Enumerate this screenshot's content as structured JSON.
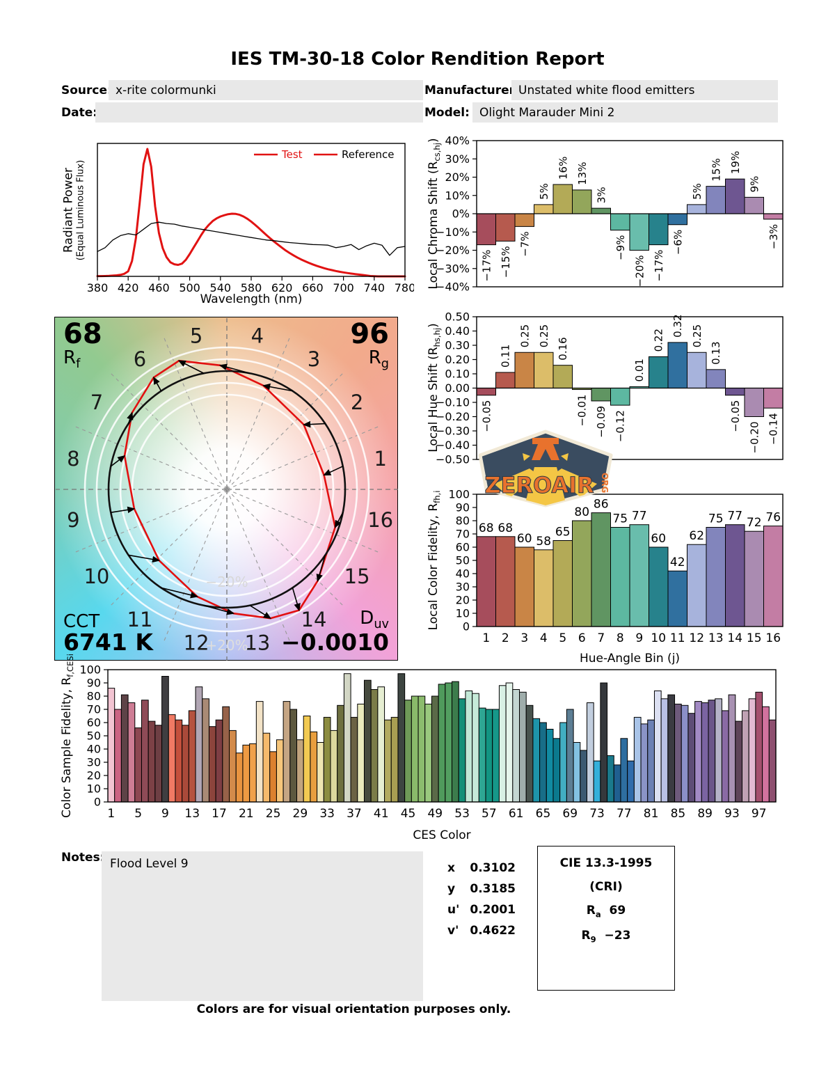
{
  "title": "IES TM-30-18 Color Rendition Report",
  "meta": {
    "source_label": "Source:",
    "source": "x-rite colormunki",
    "manufacturer_label": "Manufacturer:",
    "manufacturer": "Unstated white flood emitters",
    "date_label": "Date:",
    "date": "",
    "model_label": "Model:",
    "model": "Olight Marauder Mini 2"
  },
  "notes": {
    "label": "Notes:",
    "text": "Flood Level 9"
  },
  "chromaticity": {
    "rows": [
      {
        "k": "x",
        "v": "0.3102"
      },
      {
        "k": "y",
        "v": "0.3185"
      },
      {
        "k": "u'",
        "v": "0.2001"
      },
      {
        "k": "v'",
        "v": "0.4622"
      }
    ]
  },
  "cri": {
    "title": "CIE 13.3-1995",
    "subtitle": "(CRI)",
    "ra_pre": "R",
    "ra_sub": "a",
    "ra_val": "69",
    "r9_pre": "R",
    "r9_sub": "9",
    "r9_val": "−23"
  },
  "footer": "Colors are for visual orientation purposes only.",
  "logo": {
    "word": "ZEROAIR",
    "org": "ORG"
  },
  "hue_bin_colors": [
    "#a64d5c",
    "#b65a4e",
    "#c98546",
    "#dcbd69",
    "#b3aa57",
    "#93a65b",
    "#609562",
    "#5db8a1",
    "#69bdac",
    "#27828c",
    "#30709f",
    "#a7b3dc",
    "#8285bc",
    "#6e5691",
    "#aa8bb1",
    "#c37da4"
  ],
  "chart_data": [
    {
      "name": "spectral_power_distribution",
      "type": "line",
      "xlabel": "Wavelength (nm)",
      "ylabel1": "Radiant Power",
      "ylabel2": "(Equal Luminous Flux)",
      "xlim": [
        380,
        780
      ],
      "xtick_step": 40,
      "ylim": [
        0,
        1
      ],
      "grid": false,
      "legend_position": "upper right",
      "legend": [
        {
          "label": "Test",
          "color": "#e11212"
        },
        {
          "label": "Reference",
          "color": "#000000"
        }
      ],
      "series": [
        {
          "name": "Test",
          "color": "#e11212",
          "width": 3,
          "x_start": 380,
          "x_step": 5,
          "y": [
            0.002,
            0.002,
            0.003,
            0.004,
            0.006,
            0.008,
            0.012,
            0.02,
            0.04,
            0.12,
            0.3,
            0.58,
            0.88,
            1.0,
            0.86,
            0.55,
            0.34,
            0.22,
            0.15,
            0.11,
            0.095,
            0.09,
            0.1,
            0.13,
            0.175,
            0.225,
            0.275,
            0.325,
            0.37,
            0.405,
            0.435,
            0.455,
            0.47,
            0.48,
            0.488,
            0.492,
            0.49,
            0.483,
            0.47,
            0.452,
            0.43,
            0.405,
            0.378,
            0.35,
            0.323,
            0.297,
            0.272,
            0.248,
            0.225,
            0.203,
            0.183,
            0.165,
            0.148,
            0.133,
            0.119,
            0.106,
            0.094,
            0.083,
            0.073,
            0.064,
            0.056,
            0.049,
            0.042,
            0.036,
            0.031,
            0.026,
            0.022,
            0.018,
            0.014,
            0.011,
            0.007,
            0.003,
            0.001,
            0,
            0,
            0,
            0,
            0,
            0,
            0,
            0
          ]
        },
        {
          "name": "Reference",
          "color": "#000000",
          "width": 1.3,
          "x_start": 380,
          "x_step": 10,
          "y": [
            0.195,
            0.225,
            0.285,
            0.32,
            0.335,
            0.325,
            0.37,
            0.415,
            0.425,
            0.415,
            0.41,
            0.395,
            0.385,
            0.375,
            0.365,
            0.355,
            0.345,
            0.335,
            0.325,
            0.315,
            0.305,
            0.295,
            0.285,
            0.28,
            0.272,
            0.265,
            0.26,
            0.255,
            0.25,
            0.248,
            0.245,
            0.225,
            0.235,
            0.25,
            0.21,
            0.24,
            0.26,
            0.245,
            0.165,
            0.225,
            0.235
          ]
        }
      ]
    },
    {
      "name": "local_chroma_shift",
      "type": "bar",
      "ylabel_pre": "Local Chroma Shift (R",
      "ylabel_sub": "cs,hj",
      "ylabel_post": ")",
      "ylim": [
        -40,
        40
      ],
      "ytick_step": 10,
      "ytick_decimals": 0,
      "ytick_suffix": "%",
      "categories": [
        1,
        2,
        3,
        4,
        5,
        6,
        7,
        8,
        9,
        10,
        11,
        12,
        13,
        14,
        15,
        16
      ],
      "values": [
        -17,
        -15,
        -7,
        5,
        16,
        13,
        3,
        -9,
        -20,
        -17,
        -6,
        5,
        15,
        19,
        9,
        -3
      ],
      "bar_labels": [
        "−17%",
        "−15%",
        "−7%",
        "5%",
        "16%",
        "13%",
        "3%",
        "−9%",
        "−20%",
        "−17%",
        "−6%",
        "5%",
        "15%",
        "19%",
        "9%",
        "−3%"
      ]
    },
    {
      "name": "local_hue_shift",
      "type": "bar",
      "ylabel_pre": "Local Hue Shift (R",
      "ylabel_sub": "hs,hj",
      "ylabel_post": ")",
      "ylim": [
        -0.5,
        0.5
      ],
      "ytick_step": 0.1,
      "ytick_decimals": 2,
      "ytick_suffix": "",
      "categories": [
        1,
        2,
        3,
        4,
        5,
        6,
        7,
        8,
        9,
        10,
        11,
        12,
        13,
        14,
        15,
        16
      ],
      "values": [
        -0.05,
        0.11,
        0.25,
        0.25,
        0.16,
        -0.01,
        -0.09,
        -0.12,
        0.01,
        0.22,
        0.32,
        0.25,
        0.13,
        -0.05,
        -0.2,
        -0.14
      ],
      "bar_labels": [
        "−0.05",
        "0.11",
        "0.25",
        "0.25",
        "0.16",
        "−0.01",
        "−0.09",
        "−0.12",
        "0.01",
        "0.22",
        "0.32",
        "0.25",
        "0.13",
        "−0.05",
        "−0.20",
        "−0.14"
      ]
    },
    {
      "name": "local_color_fidelity",
      "type": "bar",
      "ylabel_pre": "Local Color Fidelity, R",
      "ylabel_sub": "fh,i",
      "ylabel_post": "",
      "xlabel": "Hue-Angle Bin (j)",
      "ylim": [
        0,
        100
      ],
      "ytick_step": 10,
      "ytick_decimals": 0,
      "ytick_suffix": "",
      "categories": [
        1,
        2,
        3,
        4,
        5,
        6,
        7,
        8,
        9,
        10,
        11,
        12,
        13,
        14,
        15,
        16
      ],
      "xticks": [
        1,
        2,
        3,
        4,
        5,
        6,
        7,
        8,
        9,
        10,
        11,
        12,
        13,
        14,
        15,
        16
      ],
      "values": [
        68,
        68,
        60,
        58,
        65,
        80,
        86,
        75,
        77,
        60,
        42,
        62,
        75,
        77,
        72,
        76
      ]
    },
    {
      "name": "color_sample_fidelity",
      "type": "bar",
      "ylabel_pre": "Color Sample Fidelity, R",
      "ylabel_sub": "f,CESi",
      "ylabel_post": "",
      "xlabel": "CES Color",
      "ylim": [
        0,
        100
      ],
      "ytick_step": 10,
      "ytick_decimals": 0,
      "ytick_suffix": "",
      "xticks": [
        1,
        5,
        9,
        13,
        17,
        21,
        25,
        29,
        33,
        37,
        41,
        45,
        49,
        53,
        57,
        61,
        65,
        69,
        73,
        77,
        81,
        85,
        89,
        93,
        97
      ],
      "values": [
        86,
        70,
        81,
        75,
        56,
        77,
        61,
        58,
        95,
        66,
        62,
        58,
        69,
        87,
        78,
        57,
        62,
        72,
        54,
        37,
        43,
        44,
        76,
        52,
        38,
        47,
        76,
        70,
        47,
        65,
        53,
        45,
        64,
        54,
        73,
        97,
        64,
        74,
        92,
        85,
        87,
        62,
        64,
        97,
        77,
        80,
        80,
        74,
        80,
        89,
        90,
        91,
        78,
        84,
        82,
        71,
        70,
        70,
        88,
        90,
        85,
        83,
        73,
        63,
        60,
        55,
        48,
        60,
        70,
        45,
        39,
        75,
        31,
        90,
        35,
        28,
        48,
        31,
        64,
        59,
        62,
        84,
        78,
        81,
        74,
        73,
        67,
        76,
        75,
        77,
        78,
        69,
        81,
        61,
        69,
        78,
        83,
        72,
        62
      ],
      "colors": [
        "#f2c4d2",
        "#cb6383",
        "#5e4347",
        "#ce7d95",
        "#8d4752",
        "#8f4b57",
        "#7c4146",
        "#6e3f44",
        "#3f3e41",
        "#f07a64",
        "#c4503c",
        "#aa4a3a",
        "#b5523f",
        "#b1a6b4",
        "#a98a75",
        "#8c443c",
        "#7e3e44",
        "#976249",
        "#d38b4b",
        "#e99440",
        "#ee9a43",
        "#f0a14b",
        "#f3e3c7",
        "#f6ba6c",
        "#dc8130",
        "#f7c67b",
        "#c5a584",
        "#5d593f",
        "#c1a47e",
        "#f2ca52",
        "#e89e3e",
        "#efe5b2",
        "#8c8c41",
        "#dcd89e",
        "#6e7040",
        "#d2d6c4",
        "#6b6244",
        "#e9e9bc",
        "#464a3e",
        "#7b7c48",
        "#e6eed2",
        "#b2aa60",
        "#a89e52",
        "#3d4541",
        "#6f9a58",
        "#8aba6a",
        "#8cbc6e",
        "#9ac87e",
        "#5a6a48",
        "#4f9a5c",
        "#529e60",
        "#3c7c4c",
        "#149078",
        "#c2e8d6",
        "#c6ead8",
        "#2ea693",
        "#129482",
        "#16988a",
        "#d8f0e4",
        "#e6f5ec",
        "#c4d6d2",
        "#9fadab",
        "#48534e",
        "#1e94aa",
        "#186e88",
        "#118ba2",
        "#0b7a8e",
        "#42aec2",
        "#5c7e94",
        "#83c2e2",
        "#3c5a72",
        "#c2cede",
        "#35b0da",
        "#35383c",
        "#1a7a8c",
        "#205f90",
        "#2e6ea0",
        "#2f6cac",
        "#a9c4e8",
        "#8a94c6",
        "#6c80b4",
        "#dce0f2",
        "#b9c0e4",
        "#3b3b42",
        "#6e5a7c",
        "#8b8fc8",
        "#5e4d76",
        "#a28ac4",
        "#7b64a2",
        "#6b5689",
        "#b5b3c8",
        "#8a6aa4",
        "#a891b2",
        "#5e4458",
        "#c0a2b4",
        "#e2bad2",
        "#a4506e",
        "#d2729e",
        "#8e5070"
      ]
    },
    {
      "name": "color_vector_graphic",
      "type": "cvg",
      "rf_value": "68",
      "rf_pre": "R",
      "rf_sub": "f",
      "rg_value": "96",
      "rg_pre": "R",
      "rg_sub": "g",
      "cct_label": "CCT",
      "cct_value": "6741 K",
      "duv_pre": "D",
      "duv_sub": "uv",
      "duv_value": "−0.0010",
      "ring_label_neg": "−20%",
      "ring_label_pos": "+20%",
      "bins": [
        1,
        2,
        3,
        4,
        5,
        6,
        7,
        8,
        9,
        10,
        11,
        12,
        13,
        14,
        15,
        16
      ],
      "rcs": [
        -0.17,
        -0.15,
        -0.07,
        0.05,
        0.16,
        0.13,
        0.03,
        -0.09,
        -0.2,
        -0.17,
        -0.06,
        0.05,
        0.15,
        0.19,
        0.09,
        -0.03
      ],
      "rhs": [
        -0.05,
        0.11,
        0.25,
        0.25,
        0.16,
        -0.01,
        -0.09,
        -0.12,
        0.01,
        0.22,
        0.32,
        0.25,
        0.13,
        -0.05,
        -0.2,
        -0.14
      ]
    }
  ]
}
